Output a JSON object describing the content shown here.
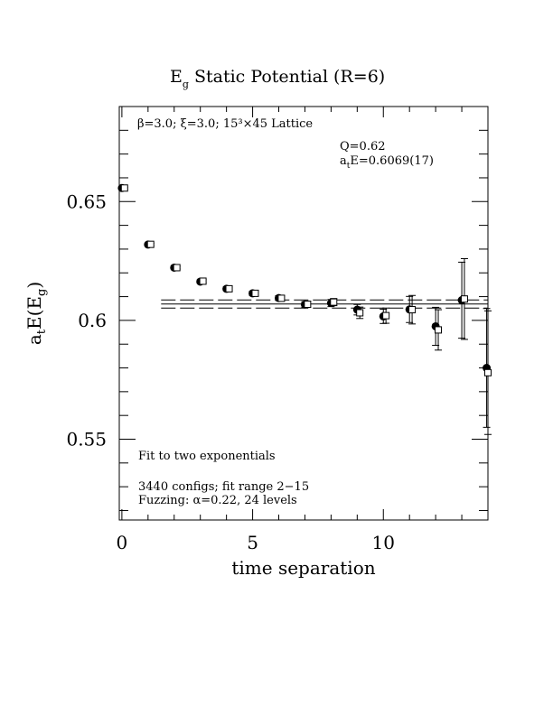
{
  "chart_data": {
    "type": "scatter",
    "title_main": "E",
    "title_sub": "g",
    "title_rest": " Static Potential (R=6)",
    "xlabel": "time separation",
    "ylabel_a": "a",
    "ylabel_t": "t",
    "ylabel_mid": "E(E",
    "ylabel_g": "g",
    "ylabel_end": ")",
    "xlim": [
      -0.1,
      14.0
    ],
    "ylim": [
      0.516,
      0.69
    ],
    "xticks": [
      0,
      5,
      10
    ],
    "xtick_labels": [
      "0",
      "5",
      "10"
    ],
    "yticks": [
      0.55,
      0.6,
      0.65
    ],
    "ytick_labels": [
      "0.55",
      "0.6",
      "0.65"
    ],
    "grid": false,
    "annotations": {
      "lattice": "β=3.0; ξ=3.0; 15³×45 Lattice",
      "q": "Q=0.62",
      "energy_a": "a",
      "energy_t": "t",
      "energy_rest": "E=0.6069(17)",
      "fit_note": "Fit to two exponentials",
      "configs": "3440 configs; fit range 2−15",
      "fuzzing": "Fuzzing: α=0.22, 24 levels"
    },
    "fit": {
      "x_range": [
        1.5,
        14.0
      ],
      "value": 0.6069,
      "error": 0.0017
    },
    "series": [
      {
        "marker": "filled-circle",
        "points": [
          {
            "x": 0,
            "y": 0.6557,
            "err": 0.0004
          },
          {
            "x": 1,
            "y": 0.6319,
            "err": 0.0005
          },
          {
            "x": 2,
            "y": 0.6222,
            "err": 0.0006
          },
          {
            "x": 3,
            "y": 0.6163,
            "err": 0.0007
          },
          {
            "x": 4,
            "y": 0.6133,
            "err": 0.0008
          },
          {
            "x": 5,
            "y": 0.6114,
            "err": 0.0009
          },
          {
            "x": 6,
            "y": 0.6094,
            "err": 0.001
          },
          {
            "x": 7,
            "y": 0.6067,
            "err": 0.0012
          },
          {
            "x": 8,
            "y": 0.6073,
            "err": 0.0015
          },
          {
            "x": 9,
            "y": 0.6045,
            "err": 0.0022
          },
          {
            "x": 10,
            "y": 0.6017,
            "err": 0.003
          },
          {
            "x": 11,
            "y": 0.6046,
            "err": 0.0055
          },
          {
            "x": 12,
            "y": 0.5975,
            "err": 0.008
          },
          {
            "x": 13,
            "y": 0.6085,
            "err": 0.016
          },
          {
            "x": 13.95,
            "y": 0.58,
            "err": 0.025
          }
        ]
      },
      {
        "marker": "open-square",
        "points": [
          {
            "x": 0.1,
            "y": 0.6557,
            "err": 0.0004
          },
          {
            "x": 1.1,
            "y": 0.632,
            "err": 0.0005
          },
          {
            "x": 2.1,
            "y": 0.6222,
            "err": 0.0006
          },
          {
            "x": 3.1,
            "y": 0.6165,
            "err": 0.0007
          },
          {
            "x": 4.1,
            "y": 0.6133,
            "err": 0.0008
          },
          {
            "x": 5.1,
            "y": 0.6114,
            "err": 0.0009
          },
          {
            "x": 6.1,
            "y": 0.6093,
            "err": 0.001
          },
          {
            "x": 7.1,
            "y": 0.6068,
            "err": 0.0012
          },
          {
            "x": 8.1,
            "y": 0.6077,
            "err": 0.0015
          },
          {
            "x": 9.1,
            "y": 0.6032,
            "err": 0.0024
          },
          {
            "x": 10.1,
            "y": 0.602,
            "err": 0.0032
          },
          {
            "x": 11.1,
            "y": 0.6045,
            "err": 0.006
          },
          {
            "x": 12.1,
            "y": 0.596,
            "err": 0.0085
          },
          {
            "x": 13.1,
            "y": 0.609,
            "err": 0.017
          },
          {
            "x": 14.0,
            "y": 0.578,
            "err": 0.026
          }
        ]
      }
    ]
  }
}
